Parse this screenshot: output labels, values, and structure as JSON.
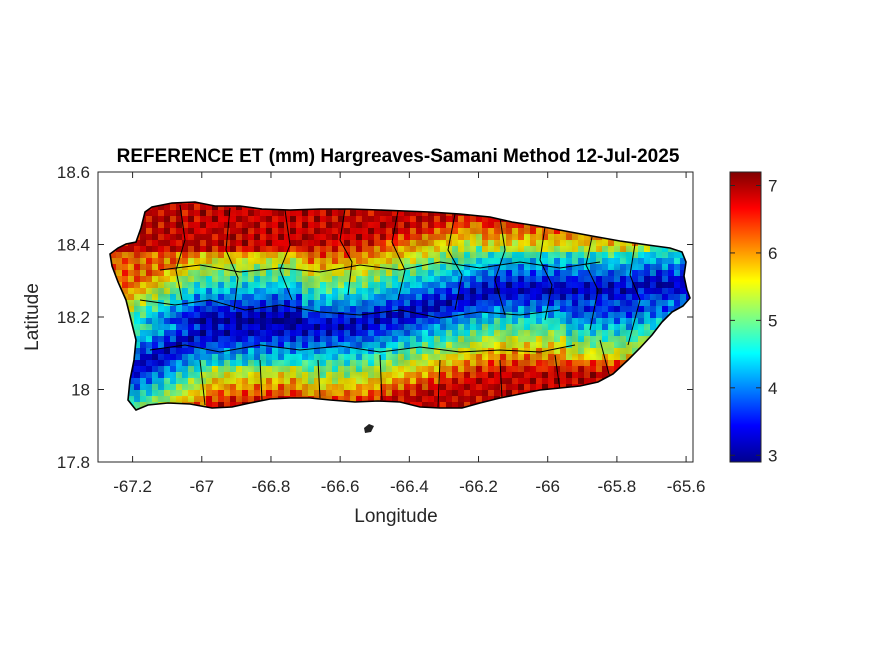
{
  "chart_data": {
    "type": "heatmap",
    "title": "REFERENCE ET (mm) Hargreaves-Samani Method  12-Jul-2025",
    "xlabel": "Longitude",
    "ylabel": "Latitude",
    "xlim": [
      -67.3,
      -65.58
    ],
    "ylim": [
      17.8,
      18.6
    ],
    "xticks": [
      -67.2,
      -67,
      -66.8,
      -66.6,
      -66.4,
      -66.2,
      -66,
      -65.8,
      -65.6
    ],
    "xtick_labels": [
      "-67.2",
      "-67",
      "-66.8",
      "-66.6",
      "-66.4",
      "-66.2",
      "-66",
      "-65.8",
      "-65.6"
    ],
    "yticks": [
      17.8,
      18,
      18.2,
      18.4,
      18.6
    ],
    "ytick_labels": [
      "17.8",
      "18",
      "18.2",
      "18.4",
      "18.6"
    ],
    "colorbar": {
      "colormap": "jet",
      "clim": [
        2.9,
        7.2
      ],
      "ticks": [
        3,
        4,
        5,
        6,
        7
      ],
      "tick_labels": [
        "3",
        "4",
        "5",
        "6",
        "7"
      ]
    },
    "grid": false,
    "field_summary": {
      "high_values_region": "north coast and south coast (about 6.5 to 7.2 mm)",
      "low_values_region": "central mountain ridge (about 3 to 4 mm)"
    }
  }
}
